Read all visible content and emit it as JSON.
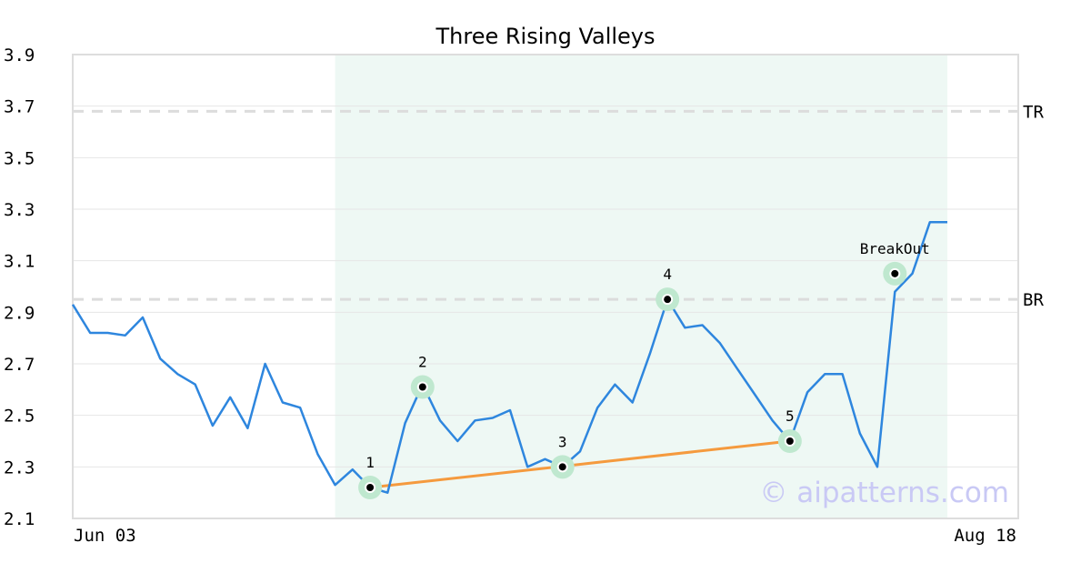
{
  "chart_data": {
    "type": "line",
    "title": "Three Rising Valleys",
    "x_tick_labels": [
      "Jun 03",
      "Aug 18"
    ],
    "ylim": [
      2.1,
      3.9
    ],
    "y_ticks": [
      "3.9",
      "3.7",
      "3.5",
      "3.3",
      "3.1",
      "2.9",
      "2.7",
      "2.5",
      "2.3",
      "2.1"
    ],
    "grid": "horizontal",
    "series": [
      {
        "color": "#2e86de",
        "values": [
          2.93,
          2.82,
          2.82,
          2.81,
          2.88,
          2.72,
          2.66,
          2.62,
          2.46,
          2.57,
          2.45,
          2.7,
          2.55,
          2.53,
          2.35,
          2.23,
          2.29,
          2.22,
          2.2,
          2.47,
          2.62,
          2.48,
          2.4,
          2.48,
          2.49,
          2.52,
          2.3,
          2.33,
          2.3,
          2.36,
          2.53,
          2.62,
          2.55,
          2.74,
          2.95,
          2.84,
          2.85,
          2.78,
          2.68,
          2.58,
          2.48,
          2.4,
          2.59,
          2.66,
          2.66,
          2.43,
          2.3,
          2.98,
          3.05,
          3.25,
          3.25
        ]
      }
    ],
    "highlight_region": {
      "start_index": 15,
      "end_index": 50,
      "color": "#eef8f4"
    },
    "reference_lines": [
      {
        "label": "TR",
        "value": 3.68
      },
      {
        "label": "BR",
        "value": 2.95
      }
    ],
    "annotations": [
      {
        "label": "1",
        "index": 17,
        "value": 2.22
      },
      {
        "label": "2",
        "index": 20,
        "value": 2.61
      },
      {
        "label": "3",
        "index": 28,
        "value": 2.3
      },
      {
        "label": "4",
        "index": 34,
        "value": 2.95
      },
      {
        "label": "5",
        "index": 41,
        "value": 2.4
      },
      {
        "label": "BreakOut",
        "index": 47,
        "value": 3.05
      }
    ],
    "trendline": {
      "from_index": 17,
      "from_value": 2.22,
      "to_index": 41,
      "to_value": 2.4,
      "color": "#f59a3e"
    },
    "watermark": "© aipatterns.com"
  }
}
